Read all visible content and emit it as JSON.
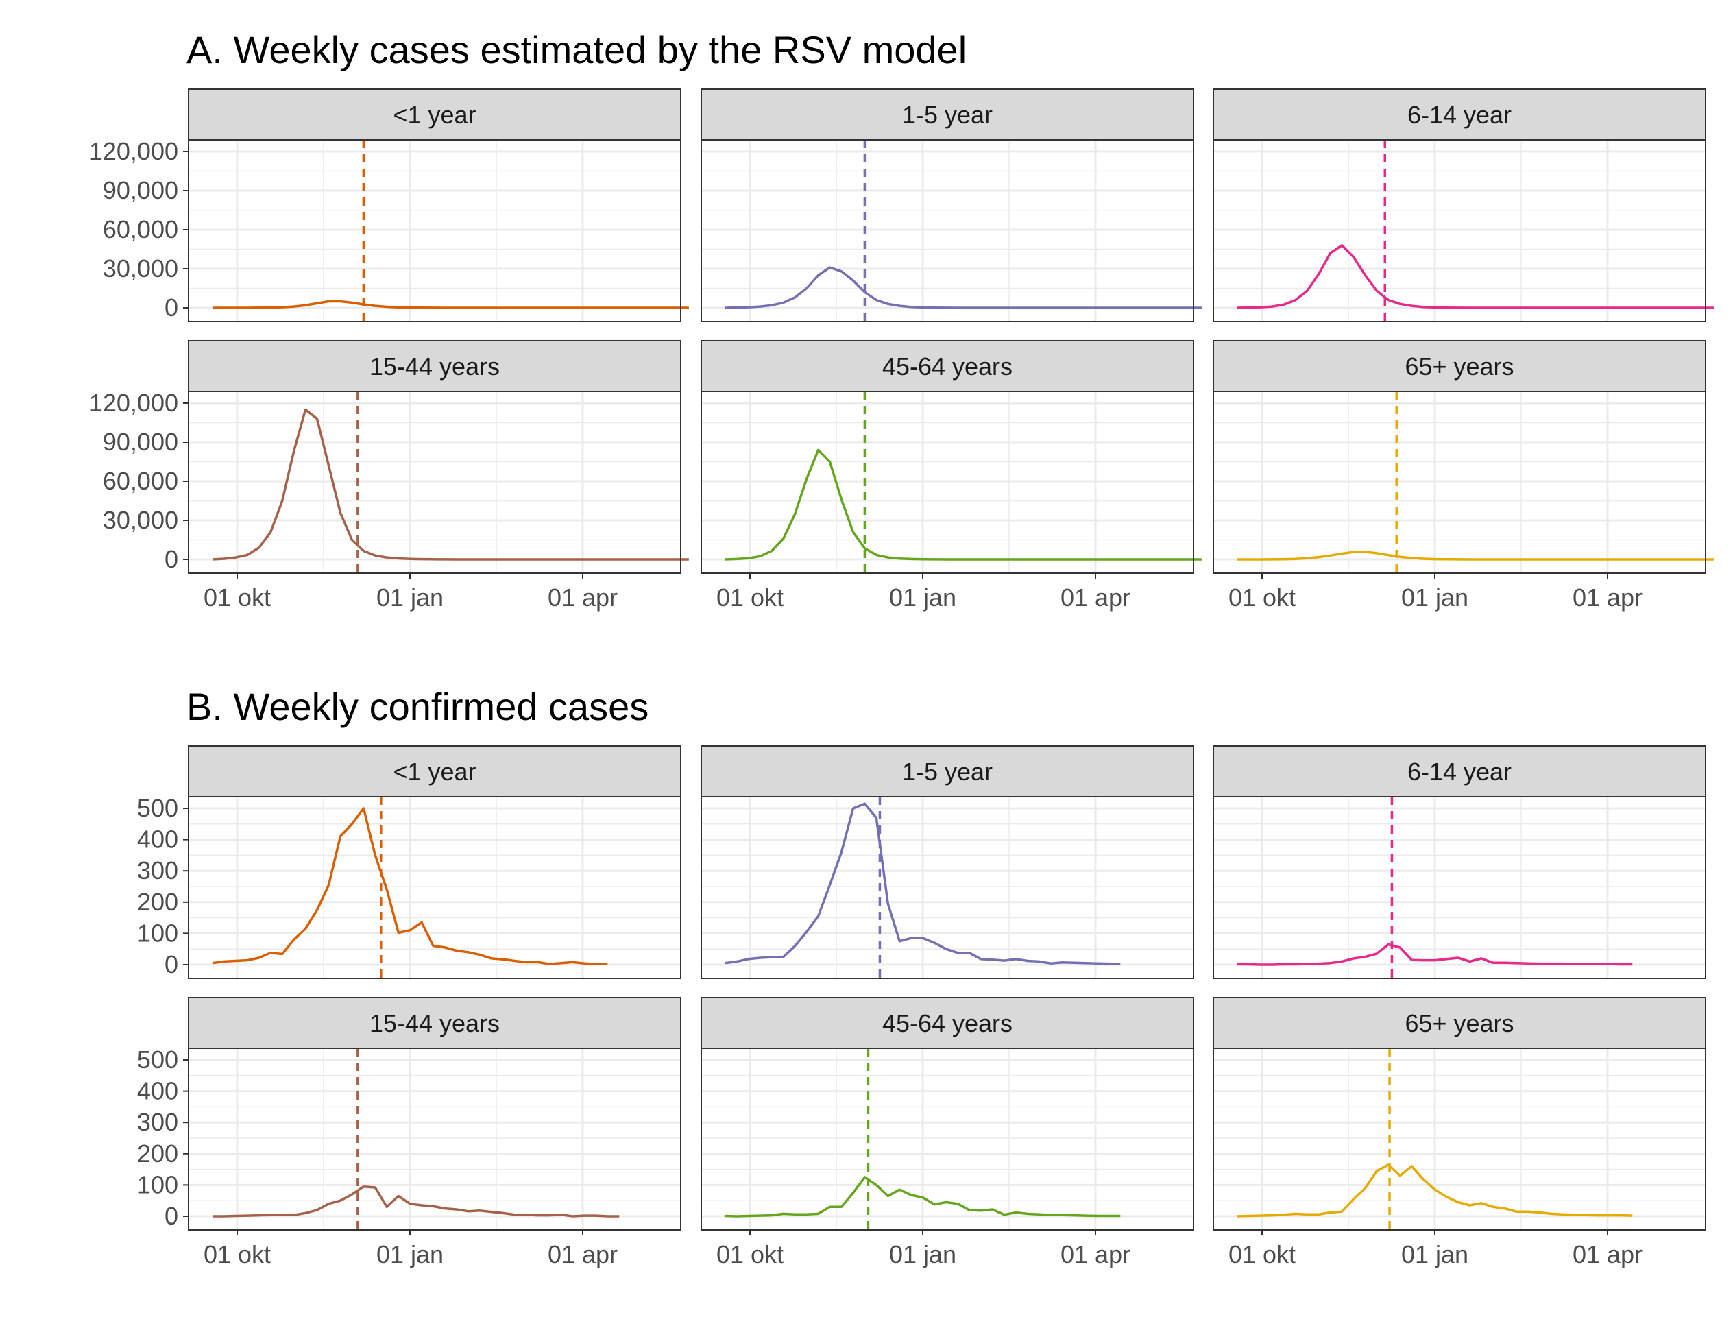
{
  "colors": {
    "<1 year": "#D95F02",
    "1-5 year": "#7570B3",
    "6-14 year": "#E7298A",
    "15-44 years": "#A6614A",
    "45-64 years": "#66A61E",
    "65+ years": "#E6AB02",
    "strip_bg": "#D9D9D9",
    "grid": "#EBEBEB",
    "panel_border": "#333333"
  },
  "x_axis": {
    "ticks": [
      "01 okt",
      "01 jan",
      "01 apr"
    ]
  },
  "chart_data": [
    {
      "type": "line",
      "title": "A. Weekly cases estimated by the RSV model",
      "y_ticks": [
        "0",
        "30,000",
        "60,000",
        "90,000",
        "120,000"
      ],
      "ylim": [
        0,
        120000
      ],
      "grid": true,
      "facets": [
        {
          "label": "<1 year",
          "peak_week": 13,
          "values": [
            0,
            0,
            0,
            0,
            100,
            200,
            500,
            1000,
            2000,
            3500,
            5000,
            5000,
            4000,
            2600,
            1500,
            800,
            400,
            200,
            100,
            50,
            20,
            0,
            0,
            0,
            0,
            0,
            0,
            0,
            0,
            0,
            0,
            0,
            0,
            0,
            0,
            0,
            0,
            0,
            0,
            0,
            0,
            0
          ]
        },
        {
          "label": "1-5 year",
          "peak_week": 12,
          "values": [
            0,
            200,
            500,
            1000,
            2000,
            4000,
            8000,
            15000,
            25000,
            31000,
            28000,
            21000,
            12000,
            6000,
            3000,
            1500,
            700,
            300,
            150,
            60,
            20,
            0,
            0,
            0,
            0,
            0,
            0,
            0,
            0,
            0,
            0,
            0,
            0,
            0,
            0,
            0,
            0,
            0,
            0,
            0,
            0,
            0
          ]
        },
        {
          "label": "6-14 year",
          "peak_week": 12.7,
          "values": [
            0,
            200,
            500,
            1000,
            2500,
            6000,
            13000,
            26000,
            42000,
            48000,
            39000,
            25000,
            13000,
            6000,
            3000,
            1500,
            700,
            300,
            150,
            60,
            20,
            0,
            0,
            0,
            0,
            0,
            0,
            0,
            0,
            0,
            0,
            0,
            0,
            0,
            0,
            0,
            0,
            0,
            0,
            0,
            0,
            0
          ]
        },
        {
          "label": "15-44 years",
          "peak_week": 12.5,
          "values": [
            0,
            500,
            1500,
            3500,
            9000,
            21000,
            45000,
            83000,
            115000,
            108000,
            72000,
            36000,
            15000,
            6500,
            3000,
            1500,
            800,
            400,
            200,
            100,
            50,
            0,
            0,
            0,
            0,
            0,
            0,
            0,
            0,
            0,
            0,
            0,
            0,
            0,
            0,
            0,
            0,
            0,
            0,
            0,
            0,
            0
          ]
        },
        {
          "label": "45-64 years",
          "peak_week": 12,
          "values": [
            0,
            300,
            900,
            2500,
            6500,
            16000,
            35000,
            62000,
            84000,
            75000,
            46000,
            21000,
            8500,
            3500,
            1500,
            700,
            300,
            150,
            60,
            20,
            10,
            0,
            0,
            0,
            0,
            0,
            0,
            0,
            0,
            0,
            0,
            0,
            0,
            0,
            0,
            0,
            0,
            0,
            0,
            0,
            0,
            0
          ]
        },
        {
          "label": "65+ years",
          "peak_week": 13.7,
          "values": [
            0,
            0,
            0,
            50,
            150,
            400,
            900,
            1800,
            3000,
            4500,
            5700,
            5800,
            4800,
            3300,
            2000,
            1100,
            500,
            200,
            80,
            30,
            10,
            0,
            0,
            0,
            0,
            0,
            0,
            0,
            0,
            0,
            0,
            0,
            0,
            0,
            0,
            0,
            0,
            0,
            0,
            0,
            0,
            0
          ]
        }
      ]
    },
    {
      "type": "line",
      "title": "B. Weekly confirmed cases",
      "y_ticks": [
        "0",
        "100",
        "200",
        "300",
        "400",
        "500"
      ],
      "ylim": [
        0,
        500
      ],
      "grid": true,
      "facets": [
        {
          "label": "<1 year",
          "peak_week": 14.5,
          "values": [
            5,
            10,
            12,
            14,
            22,
            38,
            34,
            80,
            115,
            175,
            255,
            410,
            450,
            500,
            350,
            240,
            102,
            110,
            135,
            60,
            55,
            45,
            40,
            32,
            20,
            17,
            12,
            8,
            8,
            2,
            5,
            8,
            4,
            2,
            2
          ]
        },
        {
          "label": "1-5 year",
          "peak_week": 13.3,
          "values": [
            5,
            10,
            18,
            22,
            24,
            25,
            60,
            105,
            155,
            255,
            360,
            500,
            515,
            470,
            195,
            75,
            85,
            85,
            70,
            50,
            38,
            38,
            18,
            16,
            13,
            18,
            12,
            10,
            4,
            7,
            6,
            5,
            4,
            3,
            2
          ]
        },
        {
          "label": "6-14 year",
          "peak_week": 13.3,
          "values": [
            1,
            1,
            0,
            0,
            1,
            1,
            2,
            3,
            5,
            10,
            20,
            25,
            35,
            65,
            55,
            15,
            14,
            14,
            18,
            22,
            10,
            20,
            6,
            6,
            5,
            4,
            3,
            3,
            3,
            2,
            2,
            2,
            2,
            1,
            1
          ]
        },
        {
          "label": "15-44 years",
          "peak_week": 12.5,
          "values": [
            0,
            0,
            1,
            2,
            3,
            4,
            5,
            4,
            10,
            20,
            40,
            50,
            70,
            95,
            92,
            30,
            65,
            40,
            35,
            32,
            25,
            22,
            16,
            18,
            14,
            10,
            5,
            5,
            3,
            3,
            5,
            0,
            2,
            2,
            0,
            0
          ]
        },
        {
          "label": "45-64 years",
          "peak_week": 12.3,
          "values": [
            1,
            0,
            1,
            2,
            3,
            8,
            6,
            6,
            8,
            30,
            30,
            75,
            125,
            100,
            65,
            85,
            68,
            60,
            38,
            45,
            40,
            20,
            18,
            22,
            5,
            12,
            8,
            6,
            4,
            4,
            3,
            2,
            1,
            1,
            1
          ]
        },
        {
          "label": "65+ years",
          "peak_week": 13.1,
          "values": [
            0,
            1,
            2,
            3,
            5,
            8,
            6,
            6,
            12,
            15,
            55,
            90,
            145,
            165,
            130,
            160,
            118,
            85,
            62,
            45,
            35,
            42,
            30,
            25,
            15,
            15,
            12,
            8,
            6,
            5,
            4,
            3,
            3,
            3,
            2
          ]
        }
      ]
    }
  ]
}
